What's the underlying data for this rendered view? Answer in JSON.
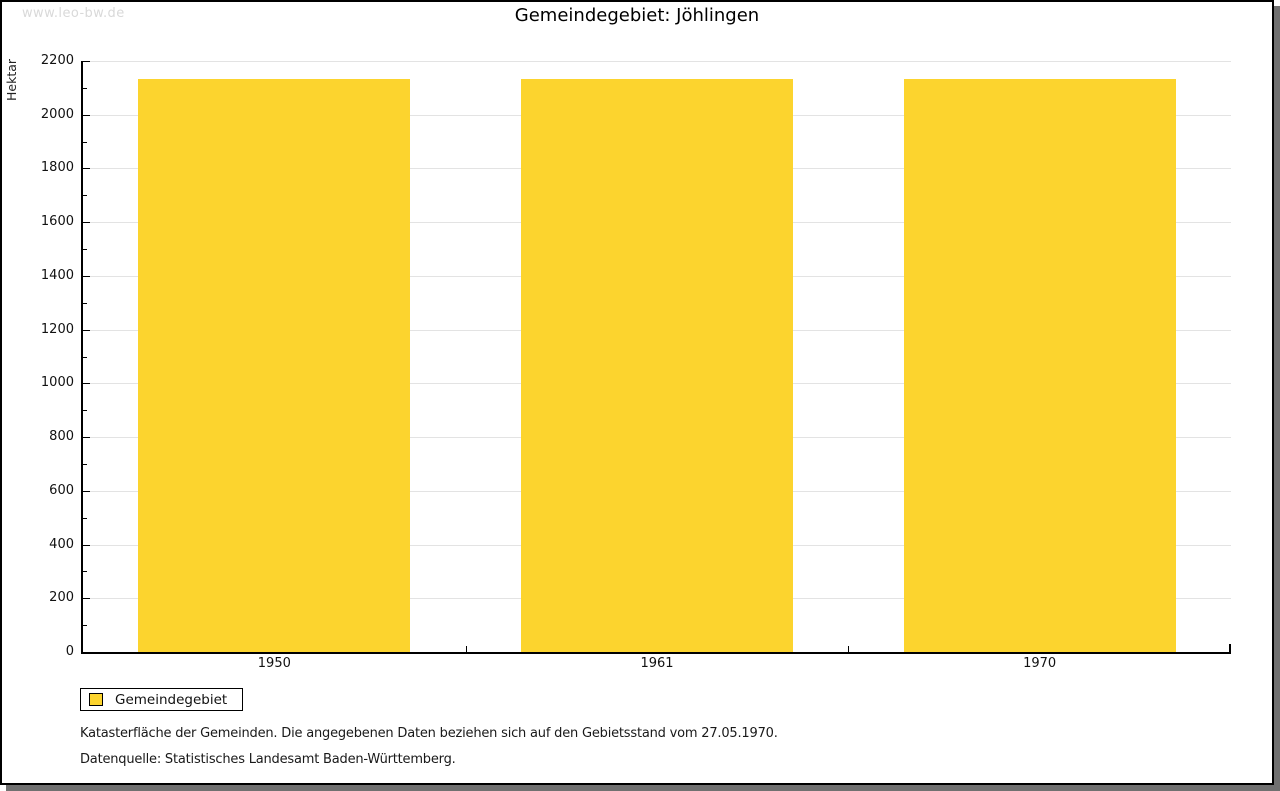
{
  "watermark": "www.leo-bw.de",
  "header": {
    "title": "Gemeindegebiet: Jöhlingen"
  },
  "chart_data": {
    "type": "bar",
    "title": "Gemeindegebiet: Jöhlingen",
    "ylabel": "Hektar",
    "categories": [
      "1950",
      "1961",
      "1970"
    ],
    "series": [
      {
        "name": "Gemeindegebiet",
        "color": "#FCD42E",
        "values": [
          2133,
          2133,
          2133
        ]
      }
    ],
    "ylim": [
      0,
      2200
    ],
    "ytick_step": 200,
    "yminor_step": 100,
    "grid": true,
    "legend_position": "bottom-left"
  },
  "legend": {
    "items": [
      {
        "label": "Gemeindegebiet",
        "color": "#FCD42E"
      }
    ]
  },
  "footnotes": [
    "Katasterfläche der Gemeinden. Die angegebenen Daten beziehen sich auf den Gebietsstand vom 27.05.1970.",
    "Datenquelle: Statistisches Landesamt Baden-Württemberg."
  ],
  "colors": {
    "bar": "#FCD42E",
    "gridline": "#E3E3E3",
    "axis": "#000000",
    "watermark_text": "#D9D9D9",
    "shadow": "#707070",
    "text": "#191919"
  }
}
